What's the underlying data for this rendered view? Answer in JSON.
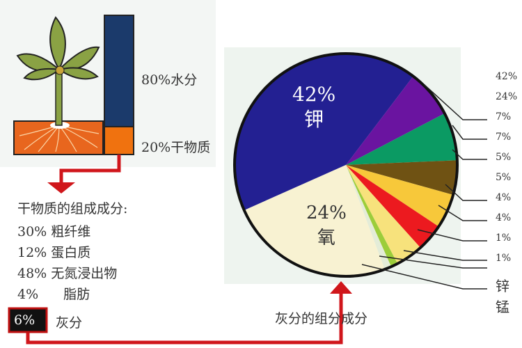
{
  "plant": {
    "water_label": "80%水分",
    "dry_label": "20%干物质",
    "water_fraction": 0.8,
    "dry_fraction": 0.2,
    "colors": {
      "water": "#1b3a6b",
      "dry": "#f0720f",
      "arrow": "#d0161b"
    }
  },
  "dry_matter": {
    "title": "干物质的组成成分:",
    "items": [
      {
        "pct": "30%",
        "name": "粗纤维"
      },
      {
        "pct": "12%",
        "name": "蛋白质"
      },
      {
        "pct": "48%",
        "name": "无氮浸出物"
      },
      {
        "pct": "4%",
        "name": "脂肪"
      }
    ],
    "ash": {
      "pct": "6%",
      "name": "灰分"
    }
  },
  "ash_title": "灰分的组分成分",
  "chart_data": {
    "type": "pie",
    "slices": [
      {
        "value": 42,
        "label": "42%",
        "name": "钾",
        "color": "#232092"
      },
      {
        "value": 7,
        "label": "7%",
        "color": "#6a14a0"
      },
      {
        "value": 7,
        "label": "7%",
        "color": "#0b9a63"
      },
      {
        "value": 5,
        "label": "5%",
        "color": "#6f5213"
      },
      {
        "value": 5,
        "label": "5%",
        "color": "#f7c83a"
      },
      {
        "value": 4,
        "label": "4%",
        "color": "#ec1a1f"
      },
      {
        "value": 4,
        "label": "4%",
        "color": "#f7e27c"
      },
      {
        "value": 1,
        "label": "1%",
        "color": "#9ccd3a"
      },
      {
        "value": 1,
        "label": "1%",
        "color": "#e4ecd8"
      },
      {
        "value": 24,
        "label": "24%",
        "name": "氧",
        "color": "#f8f2d2"
      }
    ],
    "legend_labels": [
      "42%",
      "24%",
      "7%",
      "7%",
      "5%",
      "5%",
      "4%",
      "4%",
      "1%",
      "1%",
      "锌",
      "锰"
    ]
  }
}
